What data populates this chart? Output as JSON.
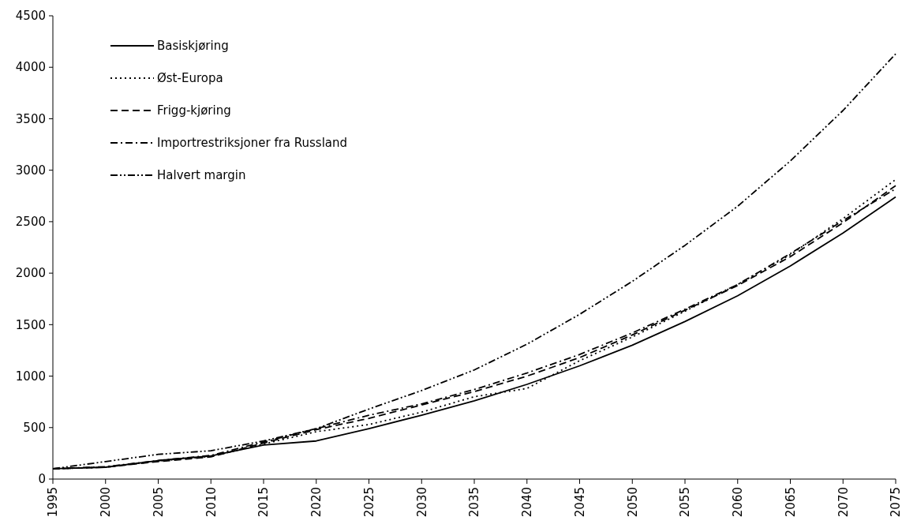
{
  "chart_data": {
    "type": "line",
    "x": [
      1995,
      2000,
      2005,
      2010,
      2015,
      2020,
      2025,
      2030,
      2035,
      2040,
      2045,
      2050,
      2055,
      2060,
      2065,
      2070,
      2075
    ],
    "xlim": [
      1995,
      2075
    ],
    "xticks": [
      1995,
      2000,
      2005,
      2010,
      2015,
      2020,
      2025,
      2030,
      2035,
      2040,
      2045,
      2050,
      2055,
      2060,
      2065,
      2070,
      2075
    ],
    "ylim": [
      0,
      4500
    ],
    "yticks": [
      0,
      500,
      1000,
      1500,
      2000,
      2500,
      3000,
      3500,
      4000,
      4500
    ],
    "legend": "top left",
    "grid": false,
    "marker": "none",
    "series": [
      {
        "name": "Basiskjøring",
        "color": "#000000",
        "line_style": "solid",
        "values": [
          100,
          115,
          180,
          225,
          330,
          370,
          490,
          620,
          760,
          920,
          1100,
          1300,
          1530,
          1780,
          2070,
          2390,
          2740
        ]
      },
      {
        "name": "Øst-Europa",
        "color": "#000000",
        "line_style": "dotted",
        "values": [
          100,
          115,
          175,
          220,
          340,
          460,
          530,
          650,
          800,
          880,
          1150,
          1380,
          1630,
          1890,
          2180,
          2530,
          2910
        ]
      },
      {
        "name": "Frigg-kjøring",
        "color": "#000000",
        "line_style": "dashed",
        "values": [
          100,
          115,
          170,
          215,
          350,
          480,
          590,
          720,
          850,
          1000,
          1180,
          1400,
          1640,
          1880,
          2160,
          2490,
          2850
        ]
      },
      {
        "name": "Importrestriksjoner fra Russland",
        "color": "#000000",
        "line_style": "dashdot",
        "values": [
          100,
          120,
          180,
          230,
          360,
          490,
          620,
          730,
          870,
          1030,
          1210,
          1420,
          1650,
          1890,
          2190,
          2510,
          2820
        ]
      },
      {
        "name": "Halvert margin",
        "color": "#000000",
        "line_style": "dashdotdot",
        "values": [
          100,
          170,
          240,
          275,
          370,
          490,
          680,
          860,
          1060,
          1310,
          1600,
          1920,
          2270,
          2650,
          3090,
          3580,
          4130
        ]
      }
    ]
  }
}
